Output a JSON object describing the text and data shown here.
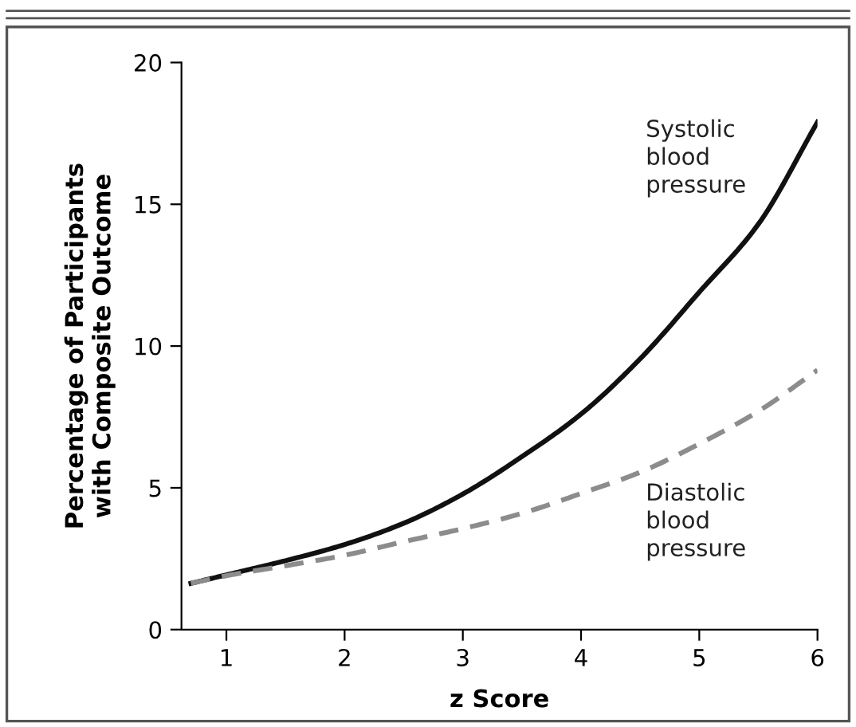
{
  "chart_data": {
    "type": "line",
    "xlabel": "z Score",
    "ylabel": "Percentage of Participants\nwith Composite Outcome",
    "x": [
      0.7,
      1,
      1.5,
      2,
      2.5,
      3,
      3.5,
      4,
      4.5,
      5,
      5.5,
      6
    ],
    "series": [
      {
        "name": "Systolic\nblood\npressure",
        "color": "#111111",
        "line_style": "solid",
        "values": [
          1.63,
          1.93,
          2.43,
          3.0,
          3.75,
          4.78,
          6.1,
          7.6,
          9.55,
          11.9,
          14.3,
          17.9
        ]
      },
      {
        "name": "Diastolic\nblood\npressure",
        "color": "#8c8c8c",
        "line_style": "dashed",
        "values": [
          1.63,
          1.9,
          2.25,
          2.62,
          3.1,
          3.56,
          4.1,
          4.8,
          5.55,
          6.55,
          7.7,
          9.15
        ]
      }
    ],
    "xlim": [
      0.62,
      6
    ],
    "ylim": [
      0,
      20
    ],
    "xticks": [
      1,
      2,
      3,
      4,
      5,
      6
    ],
    "yticks": [
      0,
      5,
      10,
      15,
      20
    ],
    "grid": false,
    "legend": false
  }
}
